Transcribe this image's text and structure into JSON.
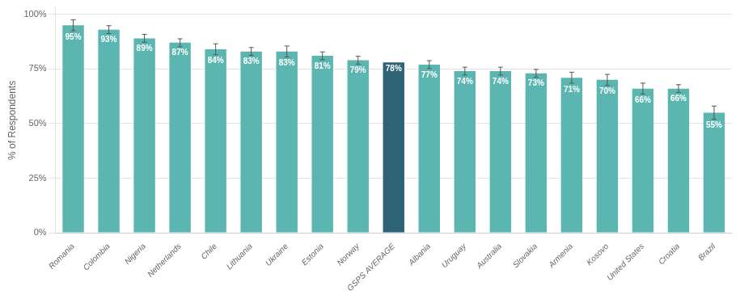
{
  "chart_data": {
    "type": "bar",
    "categories": [
      "Romania",
      "Colombia",
      "Nigeria",
      "Netherlands",
      "Chile",
      "Lithuania",
      "Ukraine",
      "Estonia",
      "Norway",
      "GSPS AVERAGE",
      "Albania",
      "Uruguay",
      "Australia",
      "Slovakia",
      "Armenia",
      "Kosovo",
      "United States",
      "Croatia",
      "Brazil"
    ],
    "values": [
      95,
      93,
      89,
      87,
      84,
      83,
      83,
      81,
      79,
      78,
      77,
      74,
      74,
      73,
      71,
      70,
      66,
      66,
      55
    ],
    "value_labels": [
      "95%",
      "93%",
      "89%",
      "87%",
      "84%",
      "83%",
      "83%",
      "81%",
      "79%",
      "78%",
      "77%",
      "74%",
      "74%",
      "73%",
      "71%",
      "70%",
      "66%",
      "66%",
      "55%"
    ],
    "errors": [
      2.5,
      1.8,
      1.8,
      1.8,
      2.5,
      1.8,
      2.5,
      1.8,
      1.8,
      0,
      1.8,
      1.8,
      1.8,
      1.8,
      2.5,
      2.5,
      2.5,
      1.8,
      3.0
    ],
    "colors": [
      "#5BB5B0",
      "#5BB5B0",
      "#5BB5B0",
      "#5BB5B0",
      "#5BB5B0",
      "#5BB5B0",
      "#5BB5B0",
      "#5BB5B0",
      "#5BB5B0",
      "#2E6275",
      "#5BB5B0",
      "#5BB5B0",
      "#5BB5B0",
      "#5BB5B0",
      "#5BB5B0",
      "#5BB5B0",
      "#5BB5B0",
      "#5BB5B0",
      "#5BB5B0"
    ],
    "ylabel": "% of Respondents",
    "ylim": [
      0,
      103
    ],
    "yticks": [
      {
        "value": 0,
        "label": "0%"
      },
      {
        "value": 25,
        "label": "25%"
      },
      {
        "value": 50,
        "label": "50%"
      },
      {
        "value": 75,
        "label": "75%"
      },
      {
        "value": 100,
        "label": "100%"
      }
    ],
    "grid": true,
    "data_labels": true
  }
}
